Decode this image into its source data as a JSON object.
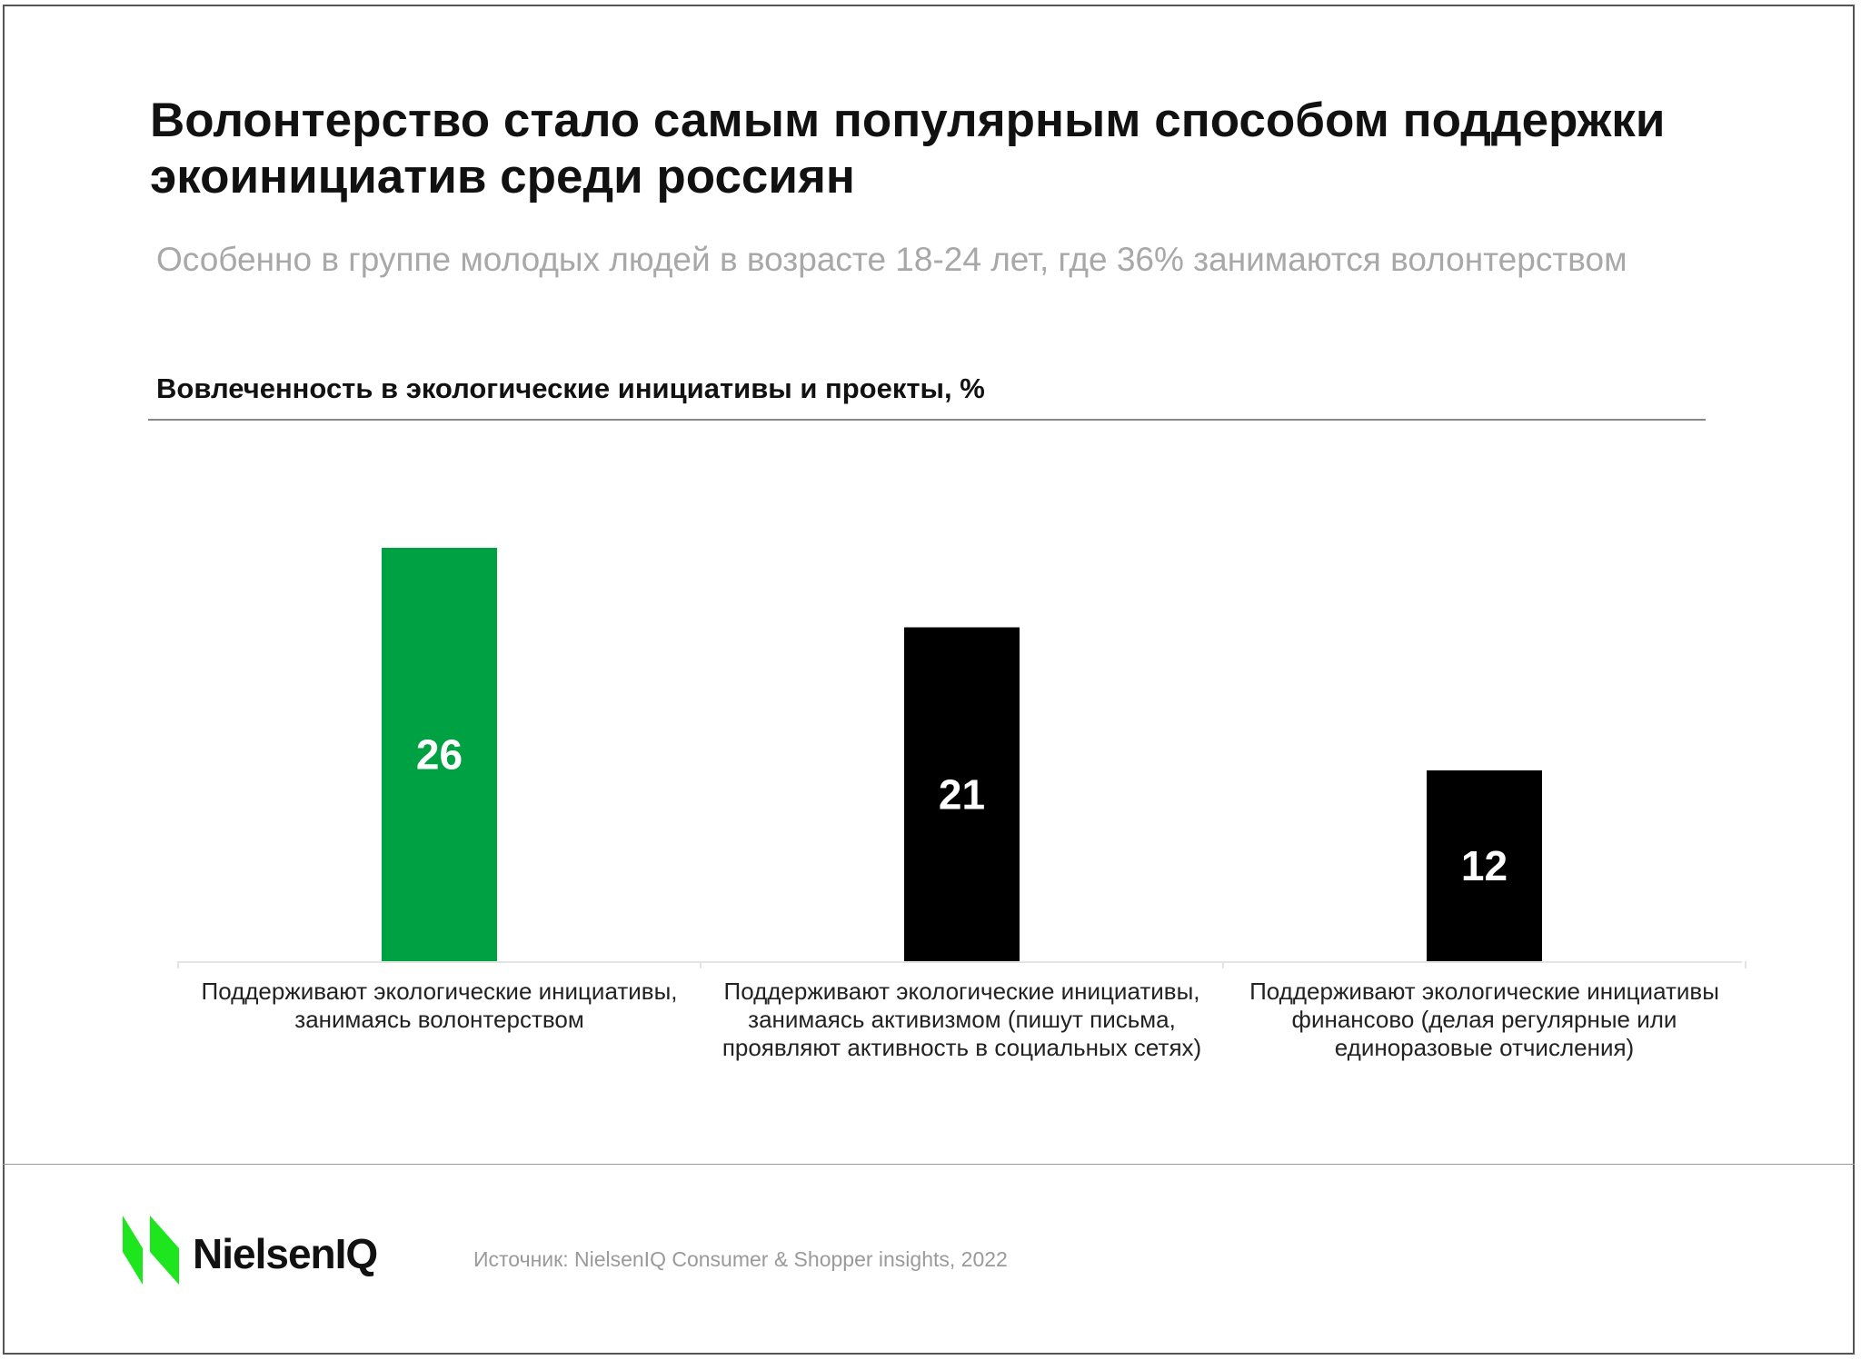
{
  "title": "Волонтерство стало самым популярным способом поддержки экоинициатив среди россиян",
  "subtitle": "Особенно в группе молодых людей в возрасте 18-24 лет, где 36% занимаются волонтерством",
  "chart_data": {
    "type": "bar",
    "title": "Вовлеченность в экологические инициативы и проекты, %",
    "categories": [
      "Поддерживают экологические инициативы, занимаясь волонтерством",
      "Поддерживают экологические инициативы, занимаясь активизмом (пишут письма, проявляют активность в социальных сетях)",
      "Поддерживают экологические инициативы финансово (делая регулярные или единоразовые отчисления)"
    ],
    "values": [
      26,
      21,
      12
    ],
    "data_labels": [
      "26",
      "21",
      "12"
    ],
    "colors": [
      "#00a142",
      "#000000",
      "#000000"
    ],
    "xlabel": "",
    "ylabel": "",
    "ylim": [
      0,
      26
    ],
    "grid": false
  },
  "footer": {
    "logo_text": "NielsenIQ",
    "source": "Источник: NielsenIQ Consumer & Shopper insights, 2022",
    "logo_color": "#1ee61e"
  }
}
